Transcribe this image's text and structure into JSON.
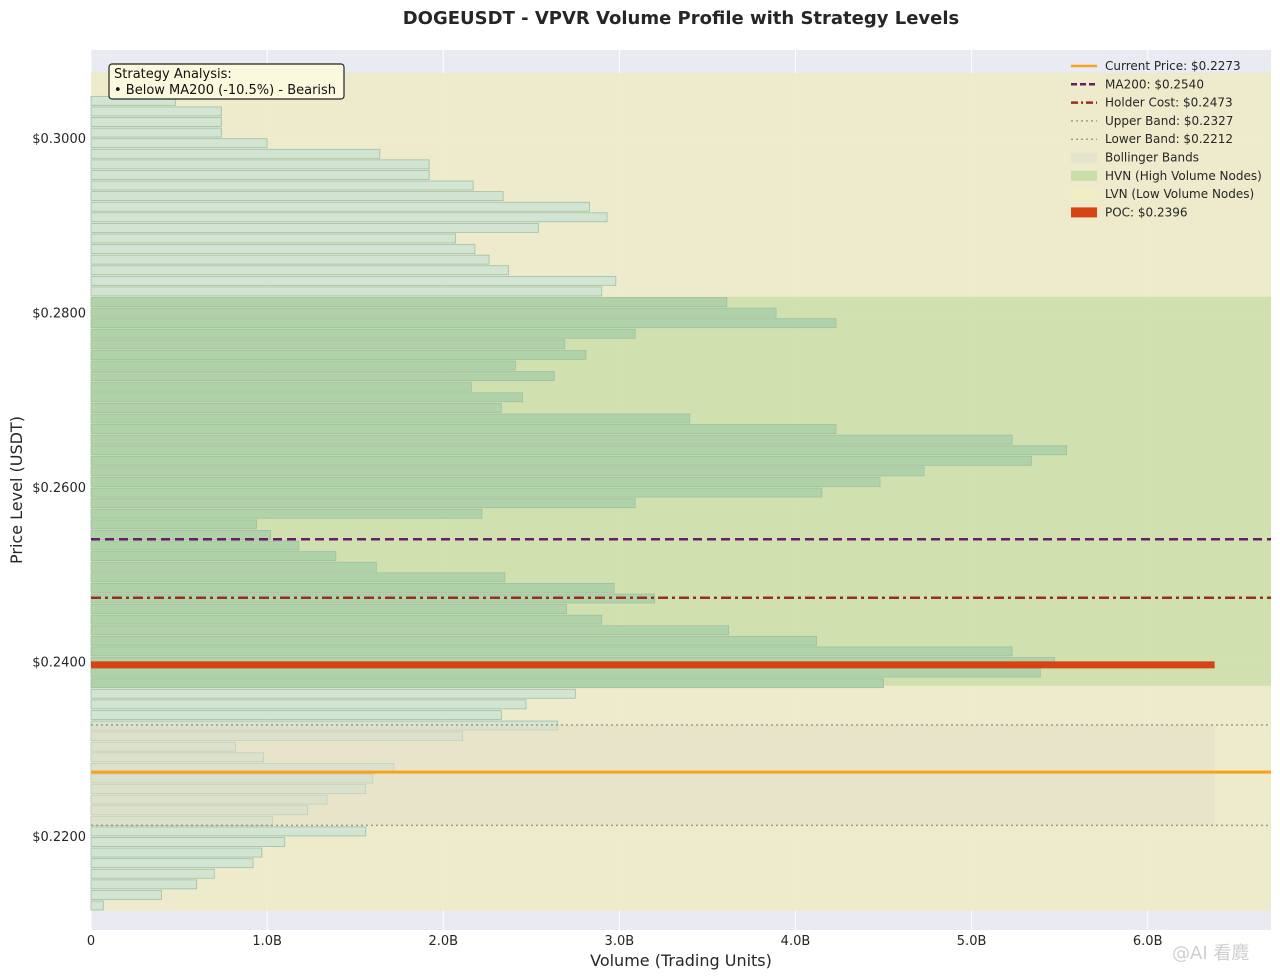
{
  "chart_data": {
    "type": "bar",
    "orientation": "horizontal",
    "title": "DOGEUSDT - VPVR Volume Profile with Strategy Levels",
    "xlabel": "Volume (Trading Units)",
    "ylabel": "Price Level (USDT)",
    "xlim": [
      0,
      6.7
    ],
    "ylim": [
      0.2092,
      0.3101
    ],
    "x_ticks": [
      0,
      1,
      2,
      3,
      4,
      5,
      6
    ],
    "x_tick_labels": [
      "0",
      "1.0B",
      "2.0B",
      "3.0B",
      "4.0B",
      "5.0B",
      "6.0B"
    ],
    "y_ticks": [
      0.22,
      0.24,
      0.26,
      0.28,
      0.3
    ],
    "y_tick_labels": [
      "$0.2200",
      "$0.2400",
      "$0.2600",
      "$0.2800",
      "$0.3000"
    ],
    "volume_unit": "B",
    "grid": true,
    "legend_position": "top-right",
    "profile": {
      "price_low": 0.2114,
      "price_high": 0.3075,
      "bin_height": 0.001214,
      "values": [
        0.07,
        0.4,
        0.6,
        0.7,
        0.92,
        0.97,
        1.1,
        1.56,
        1.03,
        1.23,
        1.34,
        1.56,
        1.6,
        1.72,
        0.98,
        0.82,
        2.11,
        2.65,
        2.33,
        2.47,
        2.75,
        4.5,
        5.39,
        5.47,
        5.23,
        4.12,
        3.62,
        2.9,
        2.7,
        3.2,
        2.97,
        2.35,
        1.62,
        1.39,
        1.18,
        1.02,
        0.94,
        2.22,
        3.09,
        4.15,
        4.48,
        4.73,
        5.34,
        5.54,
        5.23,
        4.23,
        3.4,
        2.33,
        2.45,
        2.16,
        2.63,
        2.41,
        2.81,
        2.69,
        3.09,
        4.23,
        3.89,
        3.61,
        2.9,
        2.98,
        2.37,
        2.26,
        2.18,
        2.07,
        2.54,
        2.93,
        2.83,
        2.34,
        2.17,
        1.92,
        1.92,
        1.64,
        1.0,
        0.74,
        0.74,
        0.74,
        0.48,
        0.0
      ],
      "poc_value": 6.38
    },
    "regions": {
      "hvn_low": 0.2372,
      "hvn_high": 0.2818,
      "bollinger_upper": 0.2327,
      "bollinger_lower": 0.2212,
      "bollinger_x_extent": 6.38
    },
    "levels": [
      {
        "key": "current",
        "label": "Current Price: $0.2273",
        "value": 0.2273,
        "color": "#f5a31a",
        "style": "solid",
        "width": 3
      },
      {
        "key": "ma200",
        "label": "MA200: $0.2540",
        "value": 0.254,
        "color": "#6a1b6a",
        "style": "dashed",
        "width": 2.5
      },
      {
        "key": "holder",
        "label": "Holder Cost: $0.2473",
        "value": 0.2473,
        "color": "#9b2e1f",
        "style": "dashdot",
        "width": 2.5
      },
      {
        "key": "upper",
        "label": "Upper Band: $0.2327",
        "value": 0.2327,
        "color": "#9c9c8c",
        "style": "dotted",
        "width": 1.5
      },
      {
        "key": "lower",
        "label": "Lower Band: $0.2212",
        "value": 0.2212,
        "color": "#9c9c8c",
        "style": "dotted",
        "width": 1.5
      }
    ],
    "legend": [
      {
        "label": "Current Price: $0.2273",
        "kind": "line",
        "color": "#f5a31a",
        "style": "solid"
      },
      {
        "label": "MA200: $0.2540",
        "kind": "line",
        "color": "#6a1b6a",
        "style": "dashed"
      },
      {
        "label": "Holder Cost: $0.2473",
        "kind": "line",
        "color": "#9b2e1f",
        "style": "dashdot"
      },
      {
        "label": "Upper Band: $0.2327",
        "kind": "line",
        "color": "#9c9c8c",
        "style": "dotted"
      },
      {
        "label": "Lower Band: $0.2212",
        "kind": "line",
        "color": "#9c9c8c",
        "style": "dotted"
      },
      {
        "label": "Bollinger Bands",
        "kind": "patch",
        "color": "#e4e4cc"
      },
      {
        "label": "HVN (High Volume Nodes)",
        "kind": "patch",
        "color": "#c8dfa8"
      },
      {
        "label": "LVN (Low Volume Nodes)",
        "kind": "patch",
        "color": "#f2eec4"
      },
      {
        "label": "POC: $0.2396",
        "kind": "patch",
        "color": "#d84315"
      }
    ],
    "poc": {
      "label": "POC: $0.2396",
      "value": 0.2396,
      "color": "#d84315"
    },
    "annotation": {
      "title": "Strategy Analysis:",
      "line": "• Below MA200 (-10.5%) - Bearish"
    },
    "colors": {
      "plot_bg": "#eaeaf2",
      "lvn_fill": "#edebc9",
      "hvn_fill": "#cfe0ad",
      "bollinger_fill": "#e2dfc6",
      "bar_fill_lvn": "#d2e4d2",
      "bar_fill_hvn": "#afd2a8",
      "bar_stroke": "#9fbea5"
    }
  },
  "watermark": "@AI 看麑"
}
